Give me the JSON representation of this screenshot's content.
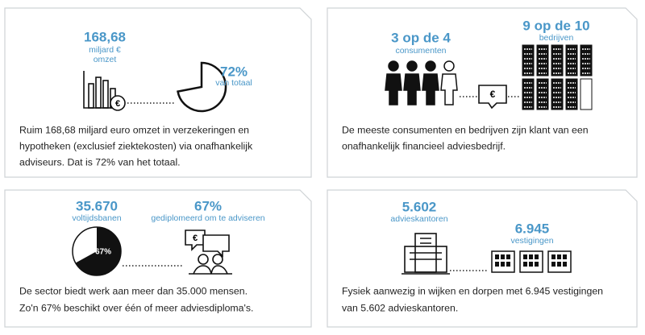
{
  "symbol": "€",
  "cards": [
    {
      "stats": [
        {
          "value": "168,68",
          "caption": [
            "miljard €",
            "omzet"
          ]
        },
        {
          "value": "72%",
          "caption": [
            "van totaal"
          ]
        }
      ],
      "pie": 72,
      "text": [
        "Ruim 168,68 miljard euro omzet in verzekeringen en",
        "hypotheken (exclusief ziektekosten) via onafhankelijk",
        "adviseurs. Dat is 72% van het totaal."
      ]
    },
    {
      "stats": [
        {
          "value": "3 op de 4",
          "caption": [
            "consumenten"
          ]
        },
        {
          "value": "9 op de 10",
          "caption": [
            "bedrijven"
          ]
        }
      ],
      "text": [
        "De meeste consumenten en bedrijven zijn klant van een",
        "onafhankelijk financieel adviesbedrijf."
      ]
    },
    {
      "stats": [
        {
          "value": "35.670",
          "caption": [
            "voltijdsbanen"
          ]
        },
        {
          "value": "67%",
          "caption": [
            "gediplomeerd om te adviseren"
          ]
        }
      ],
      "pie": 67,
      "pie_label": "67%",
      "text": [
        "De sector biedt werk aan meer dan 35.000 mensen.",
        "Zo'n 67% beschikt over één of meer adviesdiploma's."
      ]
    },
    {
      "stats": [
        {
          "value": "5.602",
          "caption": [
            "advieskantoren"
          ]
        },
        {
          "value": "6.945",
          "caption": [
            "vestigingen"
          ]
        }
      ],
      "text": [
        "Fysiek aanwezig in wijken en dorpen met 6.945 vestigingen",
        "van 5.602 advieskantoren."
      ]
    }
  ]
}
